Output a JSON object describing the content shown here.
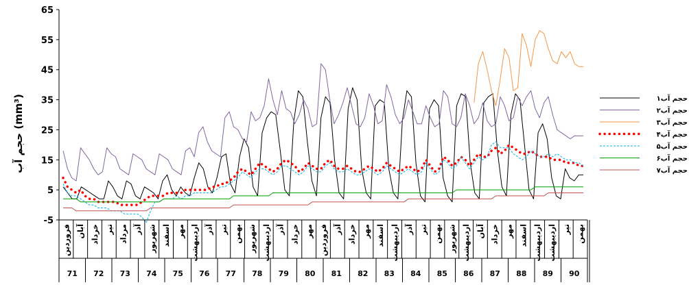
{
  "chart_data": {
    "type": "line",
    "ylabel": "حجم آب (mm³)",
    "ylim": [
      -5,
      65
    ],
    "yticks": [
      "-5",
      "5",
      "15",
      "25",
      "35",
      "45",
      "55",
      "65"
    ],
    "years": [
      "71",
      "72",
      "73",
      "74",
      "75",
      "76",
      "77",
      "78",
      "79",
      "80",
      "81",
      "82",
      "83",
      "84",
      "85",
      "86",
      "87",
      "88",
      "89",
      "90"
    ],
    "month_labels": [
      "فروردین",
      "آبان",
      "خرداد",
      "تیر",
      "مرداد",
      "آذر",
      "شهریور",
      "اسفند",
      "مهر",
      "اردیبهشت",
      "آذر",
      "تیر",
      "بهمن",
      "شهریور",
      "اردیبهشت",
      "آذر",
      "خرداد",
      "مهر",
      "فروردین",
      "آذر",
      "خرداد",
      "مهر",
      "اسفند",
      "اردیبهشت",
      "آذر",
      "تیر",
      "بهمن",
      "شهریور",
      "اردیبهشت",
      "آبان",
      "خرداد",
      "مهر",
      "اسفند",
      "اردیبهشت",
      "اردیبهشت",
      "تیر",
      "بهمن"
    ],
    "legend_position": "right",
    "grid": false,
    "series": [
      {
        "name": "حجم آب۱",
        "color": "#000000",
        "style": "solid",
        "width": 1,
        "values": [
          6,
          4,
          2,
          2,
          6,
          5,
          4,
          3,
          2,
          2,
          8,
          6,
          3,
          2,
          8,
          7,
          3,
          2,
          6,
          5,
          4,
          2,
          8,
          10,
          5,
          3,
          6,
          4,
          3,
          9,
          14,
          12,
          6,
          4,
          9,
          16,
          17,
          7,
          4,
          16,
          22,
          19,
          6,
          3,
          24,
          29,
          31,
          30,
          18,
          5,
          3,
          28,
          38,
          36,
          21,
          8,
          3,
          29,
          36,
          34,
          15,
          4,
          2,
          32,
          39,
          35,
          12,
          4,
          2,
          33,
          35,
          34,
          12,
          4,
          2,
          28,
          38,
          36,
          14,
          3,
          1,
          32,
          35,
          33,
          9,
          3,
          1,
          33,
          37,
          36,
          14,
          4,
          2,
          34,
          36,
          37,
          18,
          6,
          3,
          30,
          37,
          35,
          20,
          5,
          2,
          24,
          27,
          22,
          9,
          3,
          2,
          12,
          9,
          8,
          10,
          10
        ]
      },
      {
        "name": "حجم آب۲",
        "color": "#8064a2",
        "style": "solid",
        "width": 1,
        "values": [
          18,
          12,
          9,
          8,
          19,
          17,
          15,
          12,
          10,
          11,
          19,
          17,
          16,
          12,
          11,
          10,
          17,
          16,
          15,
          12,
          11,
          10,
          17,
          16,
          15,
          12,
          11,
          10,
          18,
          19,
          16,
          24,
          26,
          21,
          18,
          17,
          16,
          29,
          31,
          26,
          25,
          22,
          21,
          31,
          28,
          29,
          33,
          42,
          35,
          30,
          38,
          32,
          31,
          27,
          30,
          35,
          32,
          26,
          27,
          47,
          45,
          35,
          27,
          30,
          34,
          39,
          33,
          27,
          26,
          29,
          37,
          33,
          27,
          28,
          40,
          36,
          30,
          27,
          29,
          35,
          31,
          27,
          27,
          33,
          29,
          26,
          27,
          38,
          36,
          27,
          26,
          29,
          37,
          33,
          27,
          29,
          34,
          28,
          26,
          27,
          36,
          33,
          28,
          29,
          36,
          33,
          36,
          38,
          32,
          29,
          34,
          36,
          30,
          25,
          24,
          23,
          22,
          23,
          23,
          23
        ]
      },
      {
        "name": "حجم آب۳",
        "color": "#f79646",
        "style": "solid",
        "width": 1,
        "values": [
          null,
          null,
          null,
          null,
          null,
          null,
          null,
          null,
          null,
          null,
          null,
          null,
          null,
          null,
          null,
          null,
          null,
          null,
          null,
          null,
          null,
          null,
          null,
          null,
          null,
          null,
          null,
          null,
          null,
          null,
          null,
          null,
          null,
          null,
          null,
          null,
          null,
          null,
          null,
          null,
          null,
          null,
          null,
          null,
          null,
          null,
          null,
          null,
          null,
          null,
          null,
          null,
          null,
          null,
          null,
          null,
          null,
          null,
          null,
          null,
          null,
          null,
          null,
          null,
          null,
          null,
          null,
          null,
          null,
          null,
          null,
          null,
          null,
          null,
          null,
          null,
          null,
          null,
          null,
          null,
          null,
          null,
          null,
          null,
          null,
          null,
          null,
          null,
          null,
          null,
          null,
          null,
          null,
          null,
          34,
          47,
          51,
          45,
          38,
          33,
          42,
          52,
          49,
          38,
          39,
          57,
          53,
          46,
          55,
          58,
          57,
          52,
          48,
          47,
          51,
          49,
          51,
          47,
          46,
          46
        ]
      },
      {
        "name": "حجم آب۴",
        "color": "#ff0000",
        "style": "dotted",
        "width": 3.5,
        "values": [
          9,
          6,
          5,
          4,
          5,
          3,
          2,
          2,
          1,
          1,
          1,
          1,
          1,
          0,
          0,
          0,
          0,
          0,
          1,
          2,
          3,
          3,
          3,
          3,
          4,
          4,
          4,
          4,
          5,
          5,
          5,
          5,
          5,
          5,
          6,
          6,
          7,
          7,
          8,
          9,
          11,
          12,
          11,
          10,
          12,
          14,
          13,
          12,
          11,
          12,
          14,
          15,
          14,
          13,
          11,
          12,
          14,
          13,
          12,
          12,
          14,
          15,
          13,
          12,
          12,
          13,
          12,
          11,
          11,
          12,
          13,
          12,
          11,
          12,
          14,
          13,
          12,
          11,
          12,
          13,
          12,
          11,
          12,
          15,
          13,
          11,
          12,
          16,
          15,
          13,
          14,
          16,
          15,
          13,
          15,
          17,
          16,
          16,
          18,
          19,
          17,
          18,
          20,
          19,
          18,
          17,
          17,
          18,
          17,
          16,
          16,
          16,
          15,
          15,
          15,
          14,
          14,
          14,
          13,
          13
        ]
      },
      {
        "name": "حجم آب۵",
        "color": "#00b0f0",
        "style": "dashed",
        "width": 1,
        "values": [
          7,
          4,
          3,
          3,
          2,
          1,
          0,
          0,
          -1,
          -1,
          -1,
          -2,
          -2,
          -2,
          -3,
          -3,
          -3,
          -3,
          -4,
          -6,
          -2,
          1,
          1,
          2,
          2,
          2,
          3,
          2,
          3,
          3,
          4,
          4,
          4,
          4,
          4,
          5,
          6,
          6,
          7,
          8,
          9,
          11,
          10,
          9,
          11,
          12,
          12,
          11,
          10,
          11,
          13,
          13,
          12,
          11,
          10,
          11,
          13,
          12,
          11,
          11,
          13,
          14,
          12,
          11,
          11,
          12,
          11,
          10,
          10,
          11,
          12,
          11,
          10,
          11,
          13,
          12,
          11,
          10,
          11,
          12,
          11,
          10,
          11,
          14,
          12,
          10,
          11,
          15,
          14,
          12,
          13,
          16,
          14,
          12,
          14,
          16,
          15,
          16,
          20,
          21,
          19,
          19,
          19,
          17,
          16,
          15,
          16,
          18,
          17,
          16,
          16,
          17,
          16,
          17,
          16,
          15,
          15,
          14,
          14,
          13
        ]
      },
      {
        "name": "حجم آب۶",
        "color": "#00a000",
        "style": "solid",
        "width": 1,
        "values": [
          2,
          2,
          2,
          2,
          1,
          1,
          1,
          1,
          1,
          1,
          1,
          1,
          1,
          1,
          1,
          1,
          1,
          1,
          1,
          1,
          1,
          1,
          1,
          2,
          2,
          2,
          2,
          2,
          2,
          2,
          2,
          2,
          2,
          2,
          2,
          2,
          2,
          2,
          2,
          3,
          3,
          3,
          3,
          3,
          3,
          3,
          3,
          3,
          4,
          4,
          4,
          4,
          4,
          4,
          4,
          4,
          4,
          4,
          4,
          4,
          4,
          4,
          4,
          4,
          4,
          4,
          4,
          4,
          4,
          4,
          4,
          4,
          4,
          4,
          4,
          4,
          4,
          4,
          4,
          4,
          4,
          4,
          4,
          4,
          4,
          4,
          4,
          4,
          4,
          4,
          5,
          5,
          5,
          5,
          5,
          5,
          5,
          5,
          5,
          5,
          5,
          5,
          5,
          5,
          5,
          5,
          5,
          5,
          6,
          6,
          6,
          6,
          6,
          6,
          6,
          6,
          6,
          6,
          6,
          6
        ]
      },
      {
        "name": "حجم آب۷",
        "color": "#c0504d",
        "style": "solid",
        "width": 1,
        "values": [
          -1,
          -1,
          -1,
          -2,
          -2,
          -2,
          -2,
          -2,
          -2,
          -2,
          -2,
          -2,
          -2,
          -2,
          -2,
          -2,
          -2,
          -2,
          -2,
          -2,
          -1,
          -1,
          -1,
          -1,
          -1,
          -1,
          -1,
          -1,
          -1,
          -1,
          -1,
          -1,
          -1,
          -1,
          -1,
          -1,
          -1,
          -1,
          -1,
          0,
          0,
          0,
          0,
          0,
          0,
          0,
          0,
          0,
          0,
          0,
          0,
          0,
          0,
          0,
          0,
          0,
          0,
          1,
          1,
          1,
          1,
          1,
          1,
          1,
          1,
          1,
          1,
          1,
          1,
          1,
          1,
          1,
          1,
          1,
          1,
          1,
          1,
          1,
          1,
          2,
          2,
          2,
          2,
          2,
          2,
          2,
          2,
          2,
          2,
          2,
          2,
          2,
          2,
          2,
          2,
          2,
          2,
          2,
          2,
          3,
          3,
          3,
          3,
          3,
          3,
          3,
          3,
          3,
          3,
          3,
          3,
          4,
          4,
          4,
          4,
          4,
          4,
          4,
          4,
          4
        ]
      }
    ]
  }
}
